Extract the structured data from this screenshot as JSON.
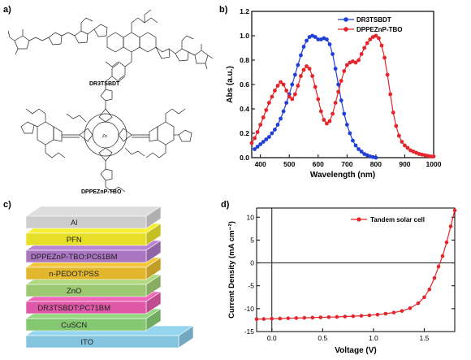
{
  "panels": {
    "a": "a)",
    "b": "b)",
    "c": "c)",
    "d": "d)"
  },
  "molecules": {
    "top_name": "DR3TSBDT",
    "bottom_name": "DPPEZnP-TBO",
    "zn_label": "Zn"
  },
  "colors": {
    "blue": "#1f3fd6",
    "red": "#e3262b"
  },
  "device_layers": [
    {
      "label": "Al",
      "color": "#dcdcdc"
    },
    {
      "label": "PFN",
      "color": "#f7ef2a"
    },
    {
      "label": "DPPEZnP-TBO:PC61BM",
      "color": "#b77fd0"
    },
    {
      "label": "n-PEDOT:PSS",
      "color": "#f3c531"
    },
    {
      "label": "ZnO",
      "color": "#a9d77b"
    },
    {
      "label": "DR3TSBDT:PC71BM",
      "color": "#ef5fb4"
    },
    {
      "label": "CuSCN",
      "color": "#8fd77b"
    },
    {
      "label": "ITO",
      "color": "#8fd3f0"
    }
  ],
  "chart_data": [
    {
      "type": "line",
      "panel": "b",
      "xlabel": "Wavelength (nm)",
      "ylabel": "Abs (a.u.)",
      "xlim": [
        370,
        1000
      ],
      "ylim": [
        0,
        1.2
      ],
      "xticks": [
        "400",
        "500",
        "600",
        "700",
        "800",
        "900",
        "1000"
      ],
      "yticks": [
        "0.0",
        "0.2",
        "0.4",
        "0.6",
        "0.8",
        "1.0",
        "1.2"
      ],
      "legend": "top-right",
      "series": [
        {
          "name": "DR3TSBDT",
          "color": "#1f3fd6",
          "x": [
            380,
            390,
            400,
            410,
            420,
            430,
            440,
            450,
            460,
            470,
            480,
            490,
            500,
            510,
            520,
            530,
            540,
            550,
            560,
            570,
            580,
            590,
            600,
            610,
            620,
            630,
            640,
            650,
            660,
            670,
            680,
            690,
            700,
            710,
            720,
            730,
            740,
            750,
            760,
            770,
            780,
            790,
            800
          ],
          "y": [
            0.07,
            0.09,
            0.11,
            0.13,
            0.15,
            0.17,
            0.2,
            0.23,
            0.27,
            0.32,
            0.38,
            0.45,
            0.52,
            0.6,
            0.68,
            0.76,
            0.84,
            0.91,
            0.96,
            0.99,
            1.0,
            0.99,
            0.97,
            0.97,
            0.98,
            0.97,
            0.93,
            0.85,
            0.73,
            0.6,
            0.47,
            0.36,
            0.27,
            0.2,
            0.14,
            0.1,
            0.07,
            0.05,
            0.03,
            0.02,
            0.01,
            0.005,
            0.0
          ]
        },
        {
          "name": "DPPEZnP-TBO",
          "color": "#e3262b",
          "x": [
            370,
            380,
            390,
            400,
            410,
            420,
            430,
            440,
            450,
            460,
            470,
            480,
            490,
            500,
            510,
            520,
            530,
            540,
            550,
            560,
            570,
            580,
            590,
            600,
            610,
            620,
            630,
            640,
            650,
            660,
            670,
            680,
            690,
            700,
            710,
            720,
            730,
            740,
            750,
            760,
            770,
            780,
            790,
            800,
            810,
            820,
            830,
            840,
            850,
            860,
            870,
            880,
            890,
            900,
            910,
            920,
            930,
            940,
            950,
            960,
            970,
            980,
            990,
            1000
          ],
          "y": [
            0.12,
            0.16,
            0.21,
            0.27,
            0.33,
            0.39,
            0.45,
            0.5,
            0.55,
            0.59,
            0.62,
            0.6,
            0.55,
            0.5,
            0.48,
            0.52,
            0.59,
            0.67,
            0.72,
            0.75,
            0.73,
            0.67,
            0.58,
            0.48,
            0.38,
            0.31,
            0.28,
            0.3,
            0.36,
            0.45,
            0.54,
            0.63,
            0.71,
            0.76,
            0.78,
            0.79,
            0.78,
            0.8,
            0.85,
            0.9,
            0.94,
            0.97,
            0.99,
            1.0,
            0.98,
            0.92,
            0.82,
            0.68,
            0.52,
            0.37,
            0.26,
            0.18,
            0.13,
            0.1,
            0.08,
            0.06,
            0.05,
            0.04,
            0.03,
            0.025,
            0.02,
            0.015,
            0.01,
            0.01
          ]
        }
      ]
    },
    {
      "type": "line",
      "panel": "d",
      "xlabel": "Voltage (V)",
      "ylabel": "Current Density (mA cm⁻²)",
      "xlim": [
        -0.15,
        1.8
      ],
      "ylim": [
        -15,
        12
      ],
      "xticks": [
        "0.0",
        "0.5",
        "1.0",
        "1.5"
      ],
      "yticks": [
        "-15",
        "-10",
        "-5",
        "0",
        "5",
        "10"
      ],
      "legend": "top-right",
      "series": [
        {
          "name": "Tandem solar cell",
          "color": "#e3262b",
          "x": [
            -0.15,
            -0.08,
            0.0,
            0.08,
            0.16,
            0.24,
            0.32,
            0.4,
            0.48,
            0.56,
            0.64,
            0.72,
            0.8,
            0.88,
            0.96,
            1.04,
            1.12,
            1.2,
            1.28,
            1.36,
            1.44,
            1.5,
            1.55,
            1.6,
            1.64,
            1.68,
            1.72,
            1.76,
            1.8
          ],
          "y": [
            -12.3,
            -12.25,
            -12.2,
            -12.15,
            -12.1,
            -12.05,
            -12.0,
            -11.95,
            -11.9,
            -11.85,
            -11.8,
            -11.72,
            -11.65,
            -11.55,
            -11.45,
            -11.3,
            -11.1,
            -10.85,
            -10.5,
            -9.9,
            -8.8,
            -7.5,
            -5.8,
            -3.3,
            -0.8,
            1.5,
            4.5,
            8.0,
            11.5
          ]
        }
      ]
    }
  ]
}
